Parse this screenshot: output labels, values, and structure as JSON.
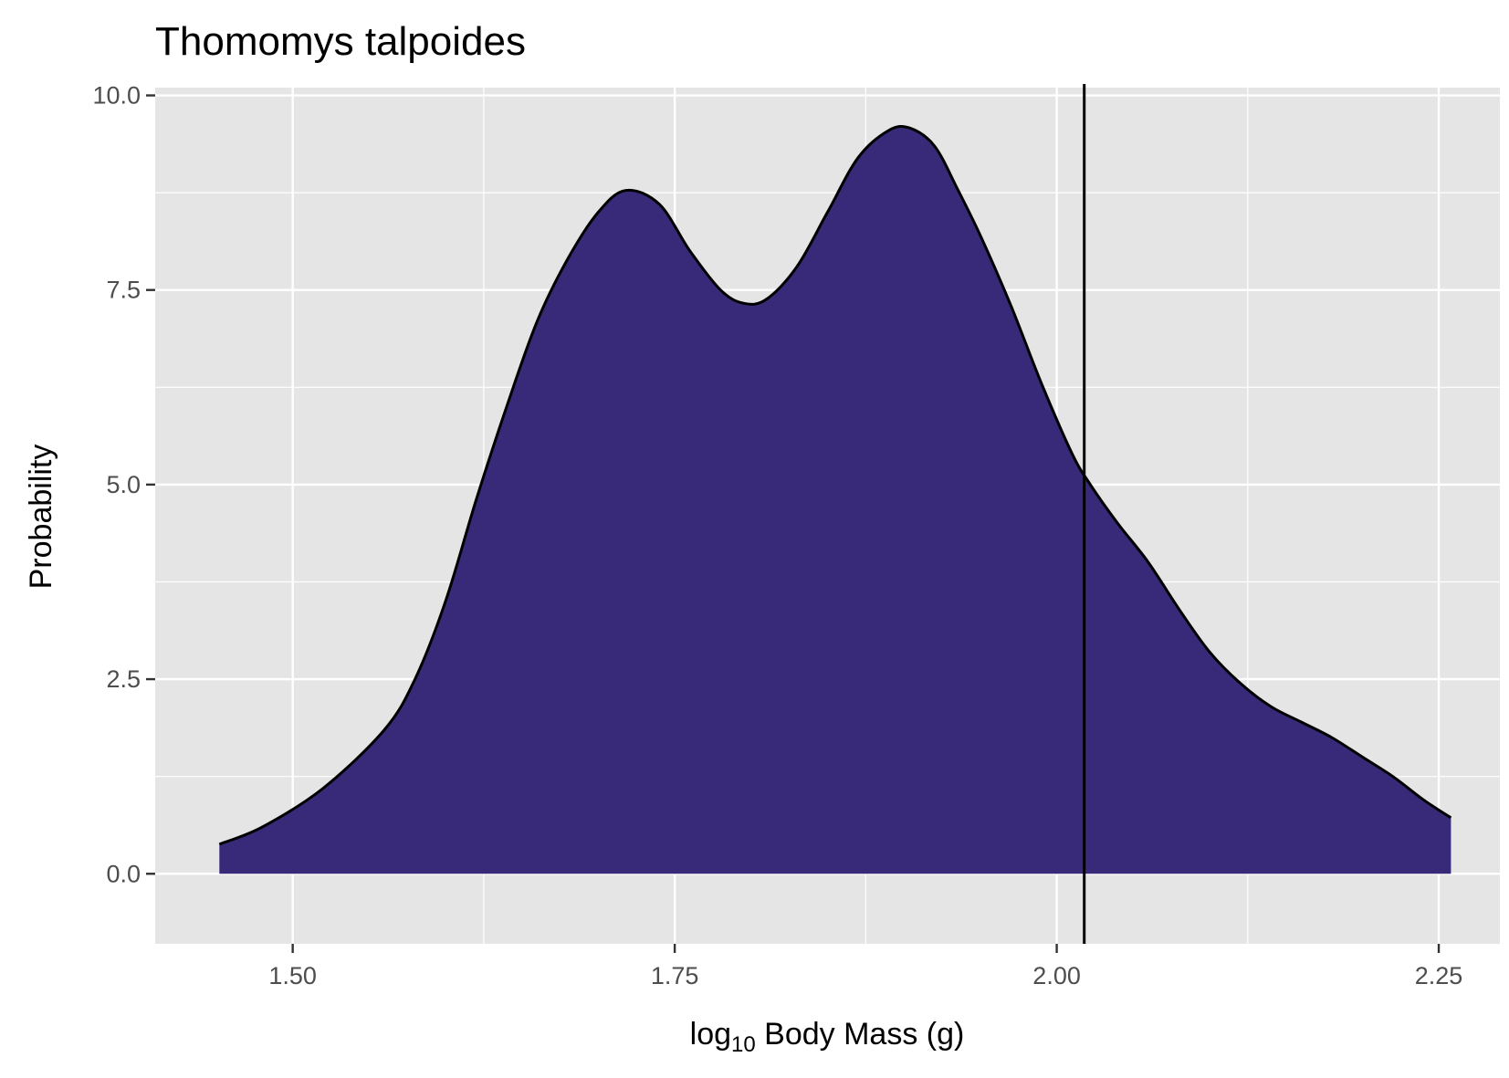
{
  "chart_data": {
    "type": "area",
    "title": "Thomomys talpoides",
    "xlabel": {
      "main": "log",
      "sub": "10",
      "rest": " Body Mass (g)"
    },
    "ylabel": "Probability",
    "xlim": [
      1.41,
      2.29
    ],
    "ylim": [
      -0.9,
      10.1
    ],
    "x_ticks": [
      1.5,
      1.75,
      2.0,
      2.25
    ],
    "x_tick_labels": [
      "1.50",
      "1.75",
      "2.00",
      "2.25"
    ],
    "y_ticks": [
      0.0,
      2.5,
      5.0,
      7.5,
      10.0
    ],
    "y_tick_labels": [
      "0.0",
      "2.5",
      "5.0",
      "7.5",
      "10.0"
    ],
    "grid": true,
    "series": [
      {
        "type": "density",
        "x": [
          1.452,
          1.48,
          1.52,
          1.56,
          1.58,
          1.6,
          1.62,
          1.64,
          1.66,
          1.68,
          1.7,
          1.718,
          1.74,
          1.76,
          1.78,
          1.795,
          1.81,
          1.83,
          1.85,
          1.87,
          1.89,
          1.904,
          1.92,
          1.935,
          1.95,
          1.97,
          1.99,
          2.01,
          2.022,
          2.04,
          2.06,
          2.08,
          2.1,
          2.12,
          2.14,
          2.16,
          2.18,
          2.2,
          2.22,
          2.24,
          2.258
        ],
        "y": [
          0.38,
          0.6,
          1.1,
          1.85,
          2.5,
          3.5,
          4.8,
          6.0,
          7.1,
          7.9,
          8.5,
          8.78,
          8.6,
          8.0,
          7.5,
          7.33,
          7.38,
          7.8,
          8.5,
          9.2,
          9.55,
          9.58,
          9.35,
          8.8,
          8.2,
          7.3,
          6.3,
          5.4,
          5.0,
          4.5,
          4.0,
          3.4,
          2.85,
          2.45,
          2.15,
          1.95,
          1.75,
          1.5,
          1.25,
          0.95,
          0.72
        ],
        "fill": "#382a78",
        "stroke": "#000000"
      }
    ],
    "vline": {
      "x": 2.018,
      "color": "#000000"
    },
    "panel_background": "#e5e5e5",
    "grid_color": "#ffffff"
  }
}
